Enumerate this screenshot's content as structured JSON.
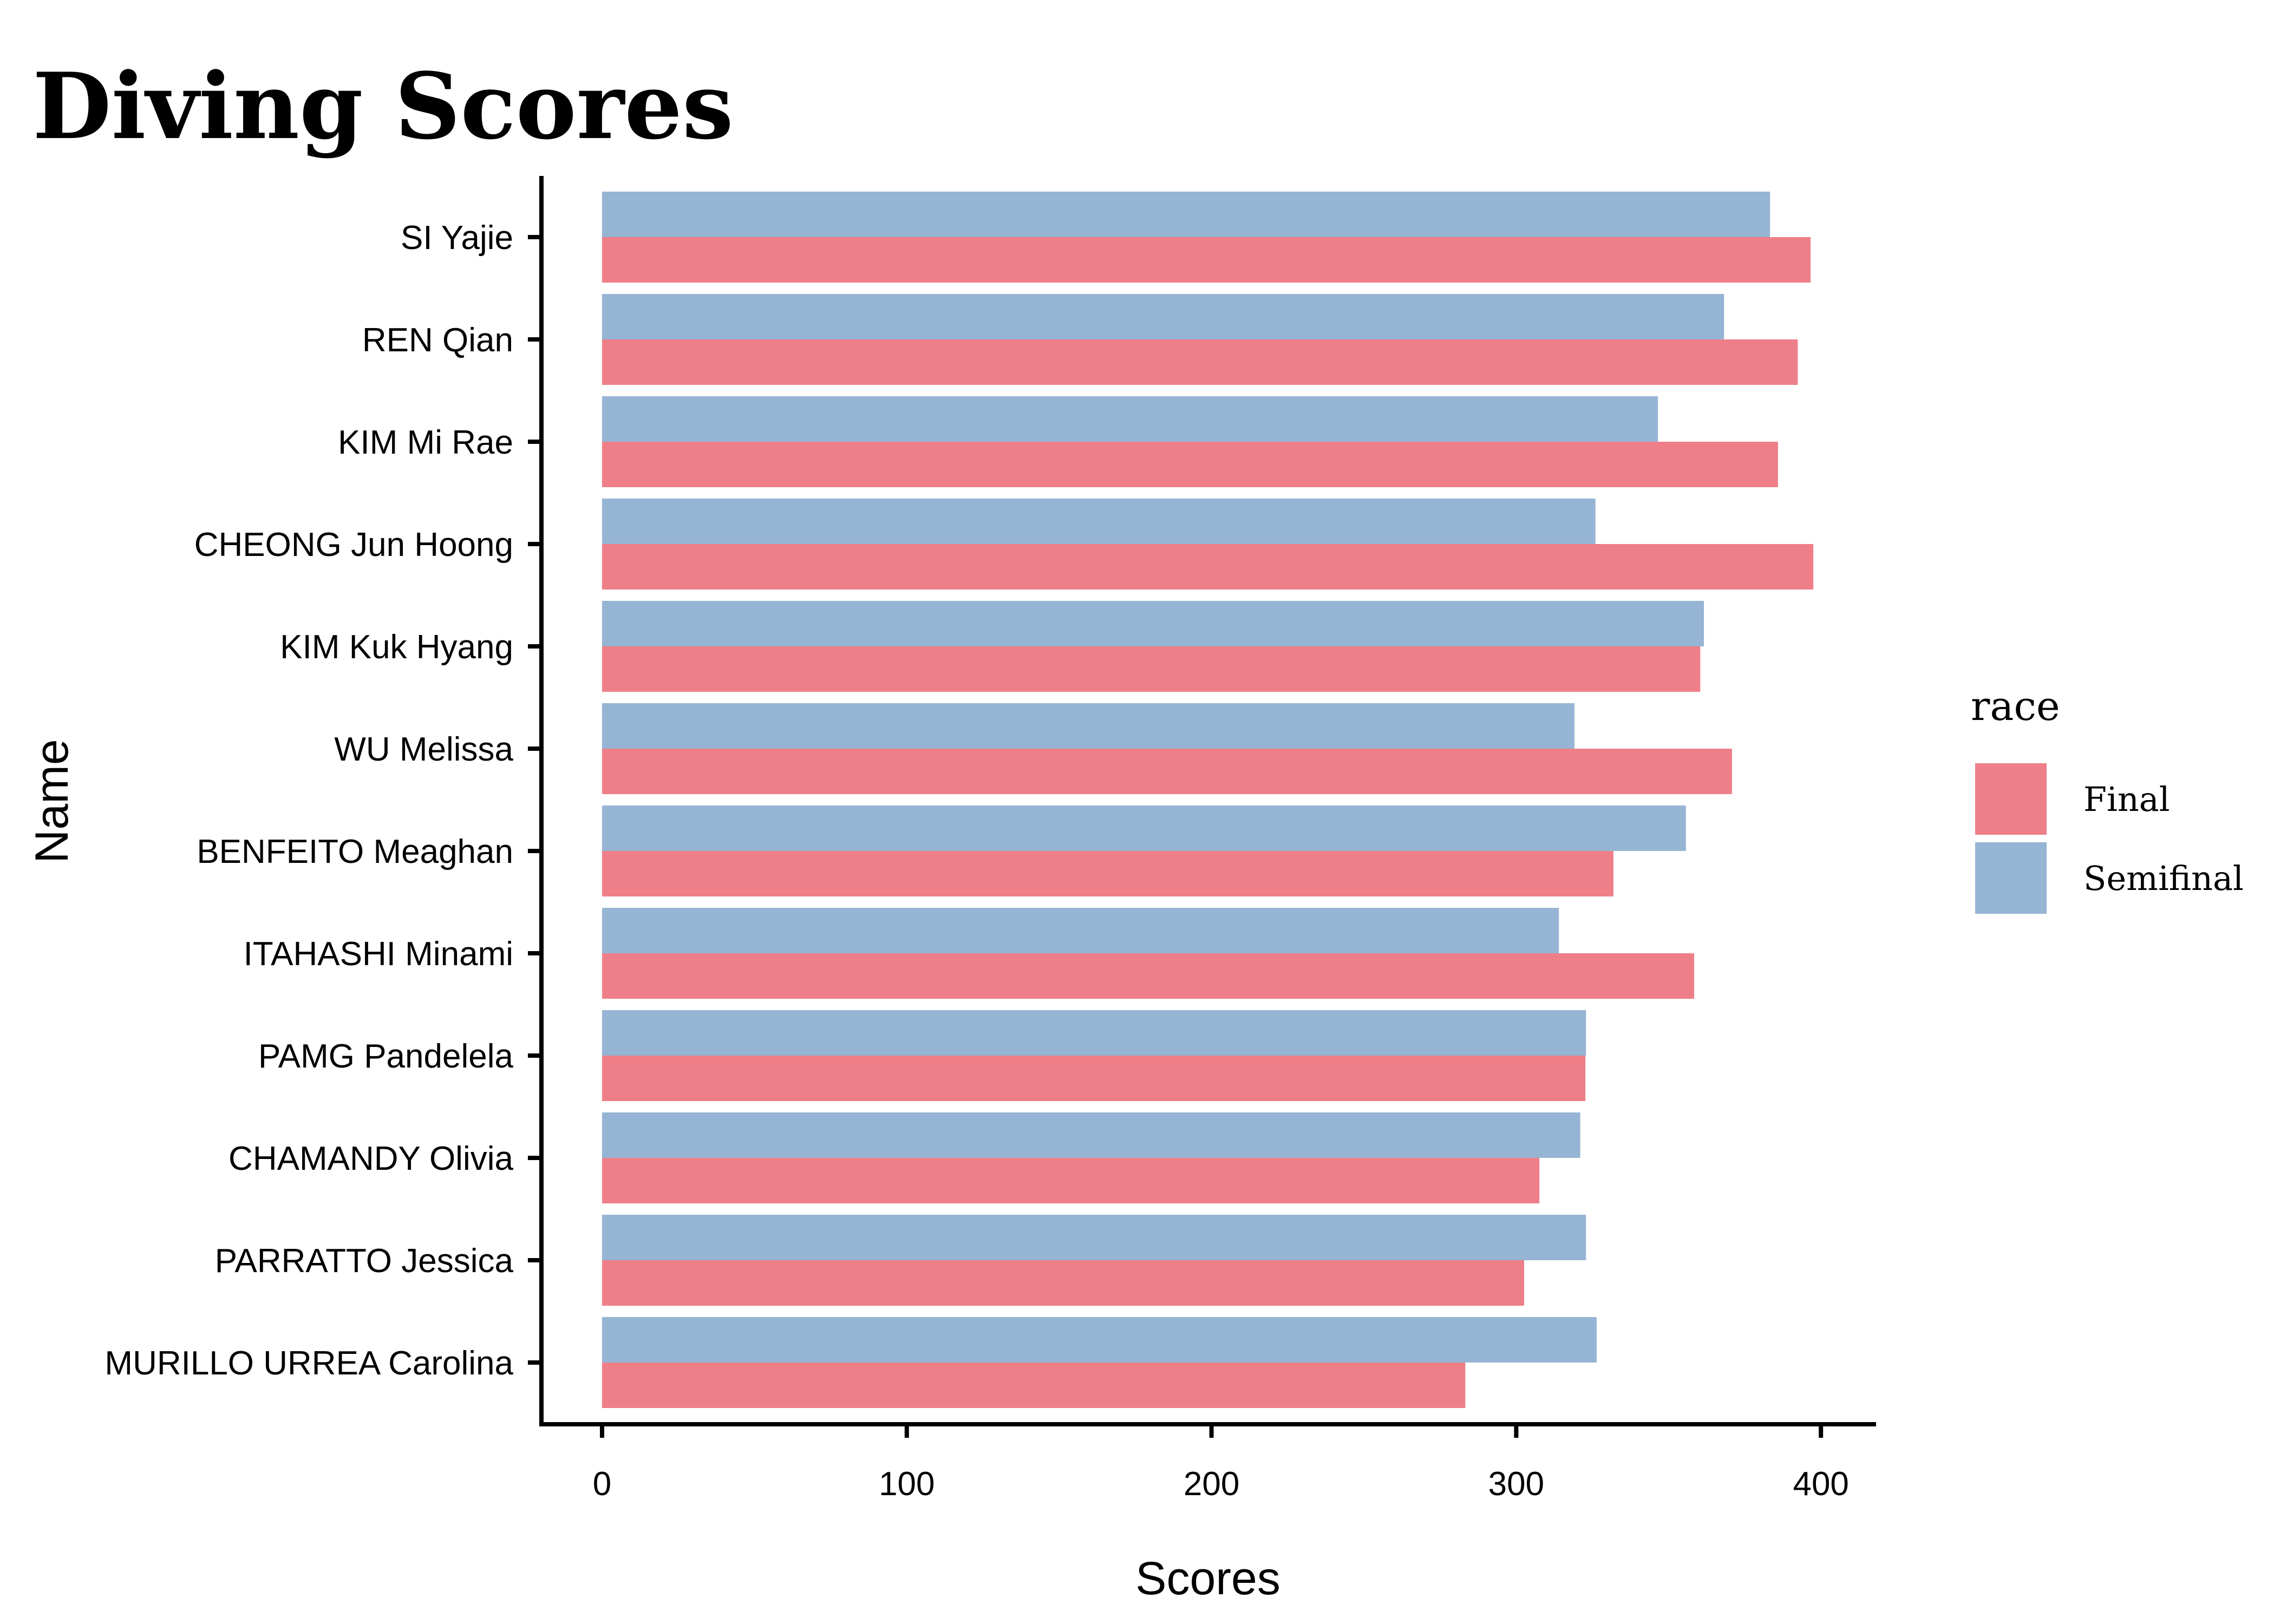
{
  "chart_data": {
    "type": "bar",
    "orientation": "horizontal",
    "title": "Diving Scores",
    "xlabel": "Scores",
    "ylabel": "Name",
    "xlim": [
      0,
      420
    ],
    "xticks": [
      0,
      100,
      200,
      300,
      400
    ],
    "grid": false,
    "legend": {
      "title": "race",
      "position": "right"
    },
    "categories": [
      "SI Yajie",
      "REN Qian",
      "KIM Mi Rae",
      "CHEONG Jun Hoong",
      "KIM Kuk Hyang",
      "WU Melissa",
      "BENFEITO Meaghan",
      "ITAHASHI Minami",
      "PAMG Pandelela",
      "CHAMANDY Olivia",
      "PARRATTO Jessica",
      "MURILLO URREA Carolina"
    ],
    "series": [
      {
        "name": "Final",
        "color": "#ee7e88",
        "values": [
          396.6,
          392.4,
          385.9,
          397.5,
          360.4,
          370.8,
          331.9,
          358.4,
          322.7,
          307.6,
          302.6,
          283.3
        ]
      },
      {
        "name": "Semifinal",
        "color": "#96b4d4",
        "values": [
          383.3,
          368.2,
          346.5,
          326.0,
          361.6,
          319.1,
          355.7,
          314.0,
          322.9,
          321.0,
          322.9,
          326.4
        ]
      }
    ]
  }
}
